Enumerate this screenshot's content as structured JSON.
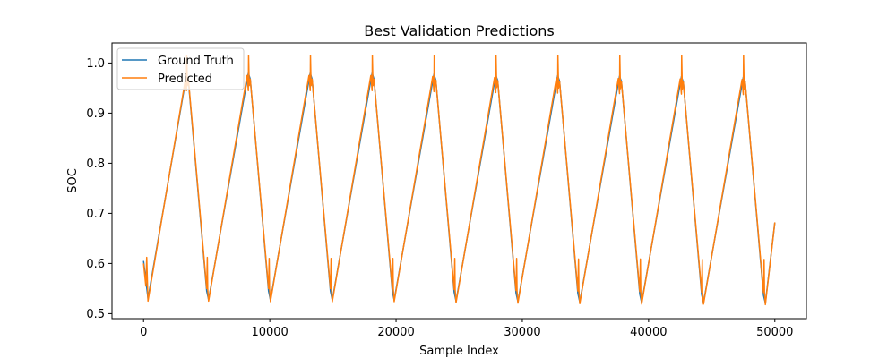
{
  "chart_data": {
    "type": "line",
    "title": "Best Validation Predictions",
    "xlabel": "Sample Index",
    "ylabel": "SOC",
    "xlim": [
      -2500,
      52500
    ],
    "ylim": [
      0.49,
      1.04
    ],
    "xticks": [
      0,
      10000,
      20000,
      30000,
      40000,
      50000
    ],
    "xtick_labels": [
      "0",
      "10000",
      "20000",
      "30000",
      "40000",
      "50000"
    ],
    "yticks": [
      0.5,
      0.6,
      0.7,
      0.8,
      0.9,
      1.0
    ],
    "ytick_labels": [
      "0.5",
      "0.6",
      "0.7",
      "0.8",
      "0.9",
      "1.0"
    ],
    "grid": false,
    "legend_position": "top-left",
    "series": [
      {
        "name": "Ground Truth",
        "color": "#1f77b4",
        "x": [
          0,
          350,
          3400,
          3550,
          5000,
          5150,
          8300,
          8450,
          9900,
          10050,
          13200,
          13350,
          14800,
          14950,
          18100,
          18250,
          19700,
          19850,
          23000,
          23150,
          24600,
          24750,
          27900,
          28050,
          29500,
          29650,
          32800,
          32950,
          34400,
          34550,
          37700,
          37850,
          39300,
          39450,
          42600,
          42750,
          44200,
          44350,
          47500,
          47650,
          49100,
          49250,
          50000
        ],
        "y": [
          0.605,
          0.53,
          0.975,
          0.965,
          0.545,
          0.528,
          0.98,
          0.968,
          0.545,
          0.527,
          0.98,
          0.968,
          0.545,
          0.527,
          0.98,
          0.968,
          0.545,
          0.527,
          0.978,
          0.966,
          0.543,
          0.525,
          0.976,
          0.965,
          0.541,
          0.524,
          0.975,
          0.964,
          0.54,
          0.523,
          0.974,
          0.963,
          0.539,
          0.522,
          0.973,
          0.962,
          0.538,
          0.522,
          0.972,
          0.962,
          0.537,
          0.521,
          0.682
        ]
      },
      {
        "name": "Predicted",
        "color": "#ff7f0e",
        "x": [
          0,
          180,
          250,
          350,
          3300,
          3400,
          3420,
          3470,
          3550,
          5000,
          5050,
          5080,
          5150,
          8200,
          8300,
          8320,
          8370,
          8450,
          9900,
          9950,
          9980,
          10050,
          13100,
          13200,
          13220,
          13270,
          13350,
          14800,
          14850,
          14880,
          14950,
          18000,
          18100,
          18120,
          18170,
          18250,
          19700,
          19750,
          19780,
          19850,
          22900,
          23000,
          23020,
          23070,
          23150,
          24600,
          24650,
          24680,
          24750,
          27800,
          27900,
          27920,
          27970,
          28050,
          29500,
          29550,
          29580,
          29650,
          32700,
          32800,
          32820,
          32870,
          32950,
          34400,
          34450,
          34480,
          34550,
          37600,
          37700,
          37720,
          37770,
          37850,
          39300,
          39350,
          39380,
          39450,
          42500,
          42600,
          42620,
          42670,
          42750,
          44200,
          44250,
          44280,
          44350,
          47400,
          47500,
          47520,
          47570,
          47650,
          49100,
          49150,
          49180,
          49250,
          50000
        ],
        "y": [
          0.6,
          0.555,
          0.612,
          0.525,
          0.965,
          0.945,
          1.015,
          0.955,
          0.968,
          0.55,
          0.612,
          0.55,
          0.525,
          0.975,
          0.945,
          1.015,
          0.955,
          0.968,
          0.55,
          0.61,
          0.55,
          0.524,
          0.975,
          0.945,
          1.015,
          0.955,
          0.968,
          0.55,
          0.61,
          0.55,
          0.524,
          0.975,
          0.945,
          1.015,
          0.955,
          0.968,
          0.55,
          0.61,
          0.55,
          0.524,
          0.973,
          0.943,
          1.015,
          0.953,
          0.966,
          0.548,
          0.61,
          0.548,
          0.522,
          0.971,
          0.941,
          1.015,
          0.951,
          0.965,
          0.546,
          0.61,
          0.546,
          0.521,
          0.97,
          0.94,
          1.015,
          0.95,
          0.964,
          0.545,
          0.609,
          0.545,
          0.52,
          0.969,
          0.939,
          1.015,
          0.949,
          0.963,
          0.544,
          0.609,
          0.544,
          0.519,
          0.968,
          0.938,
          1.015,
          0.948,
          0.962,
          0.543,
          0.608,
          0.543,
          0.519,
          0.967,
          0.937,
          1.015,
          0.947,
          0.962,
          0.542,
          0.608,
          0.542,
          0.518,
          0.682
        ]
      }
    ]
  }
}
